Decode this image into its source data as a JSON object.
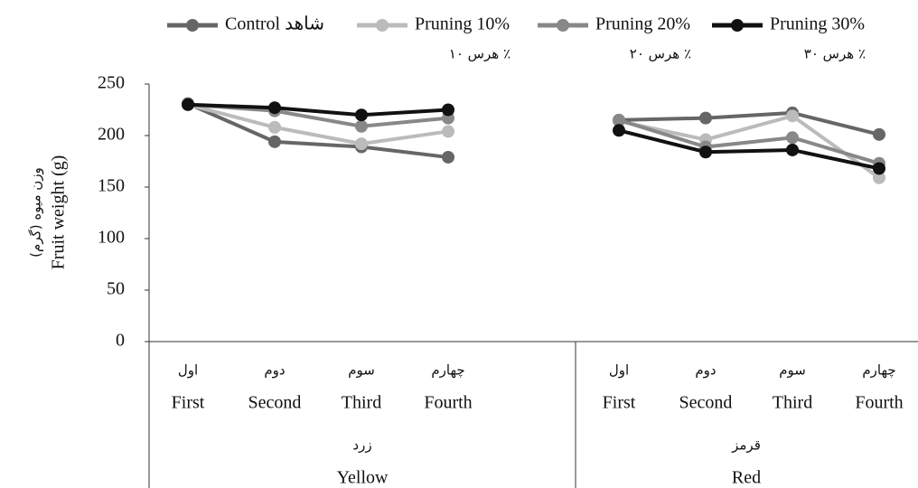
{
  "chart_data": {
    "type": "line",
    "y_label": [
      "وزن میوه (گرم)",
      "Fruit weight (g)"
    ],
    "groups": [
      {
        "name": [
          "زرد",
          "Yellow"
        ],
        "categories": [
          [
            "اول",
            "First"
          ],
          [
            "دوم",
            "Second"
          ],
          [
            "سوم",
            "Third"
          ],
          [
            "چهارم",
            "Fourth"
          ]
        ]
      },
      {
        "name": [
          "قرمز",
          "Red"
        ],
        "categories": [
          [
            "اول",
            "First"
          ],
          [
            "دوم",
            "Second"
          ],
          [
            "سوم",
            "Third"
          ],
          [
            "چهارم",
            "Fourth"
          ]
        ]
      }
    ],
    "series": [
      {
        "name": [
          "Control شاهد"
        ],
        "color": "#666666",
        "values": [
          [
            231,
            194,
            189,
            179
          ],
          [
            215,
            217,
            222,
            201
          ]
        ]
      },
      {
        "name": [
          "Pruning 10%",
          "هرس ۱۰ ٪"
        ],
        "color": "#bbbbbb",
        "values": [
          [
            230,
            208,
            192,
            204
          ],
          [
            214,
            196,
            219,
            159
          ]
        ]
      },
      {
        "name": [
          "Pruning 20%",
          "هرس ۲۰ ٪"
        ],
        "color": "#888888",
        "values": [
          [
            230,
            224,
            209,
            217
          ],
          [
            215,
            189,
            198,
            173
          ]
        ]
      },
      {
        "name": [
          "Pruning 30%",
          "هرس ۳۰ ٪"
        ],
        "color": "#111111",
        "values": [
          [
            230,
            227,
            220,
            225
          ],
          [
            205,
            184,
            186,
            168
          ]
        ]
      }
    ],
    "ylim": [
      0,
      250
    ],
    "yticks": [
      0,
      50,
      100,
      150,
      200,
      250
    ]
  }
}
